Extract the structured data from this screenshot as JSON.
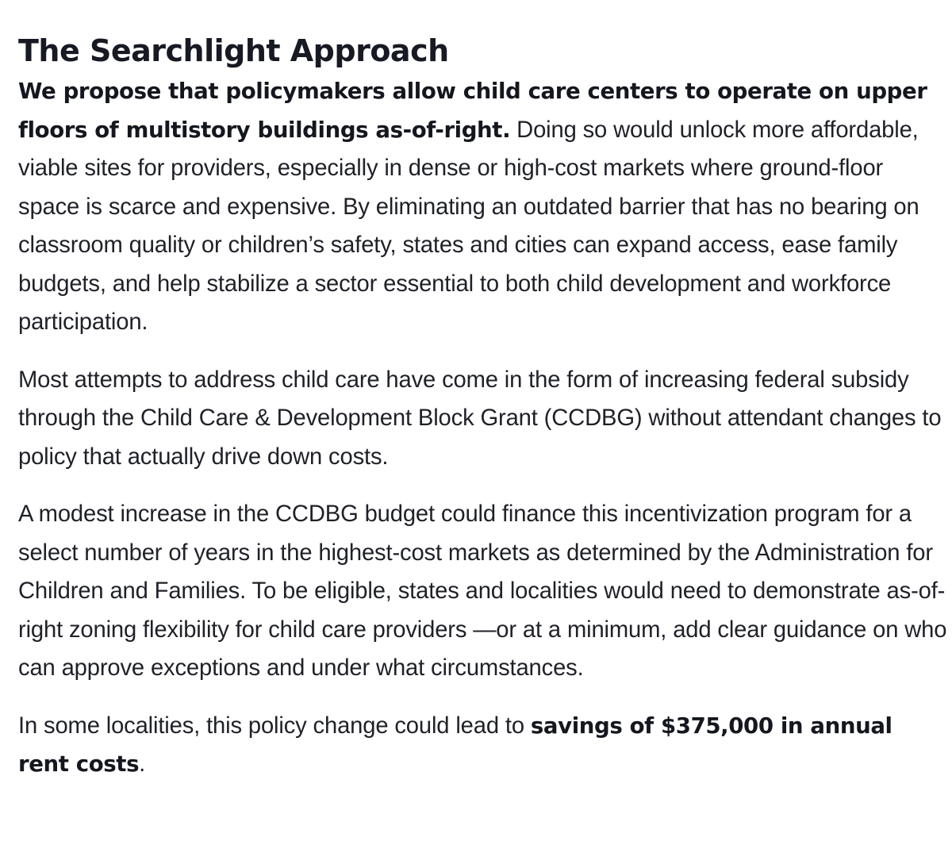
{
  "heading": "The Searchlight Approach",
  "paragraphs": [
    {
      "bold_lead": "We propose that policymakers allow child care centers to operate on upper floors of multistory buildings as-of-right.",
      "text": " Doing so would unlock more affordable, viable sites for providers, especially in dense or high-cost markets where ground-floor space is scarce and expensive. By eliminating an outdated barrier that has no bearing on classroom quality or children’s safety, states and cities can expand access, ease family budgets, and help stabilize a sector essential to both child development and workforce participation."
    },
    {
      "text": "Most attempts to address child care have come in the form of increasing federal subsidy through the Child Care & Development Block Grant (CCDBG) without attendant changes to policy that actually drive down costs."
    },
    {
      "text": "A modest increase in the CCDBG budget could finance this incentivization program for a select number of years in the highest-cost markets as determined by the Administration for Children and Families. To be eligible, states and localities would need to demonstrate as-of-right zoning flexibility for child care providers —or at a minimum, add clear guidance on who can approve exceptions and under what circumstances."
    },
    {
      "text": "In some localities, this policy change could lead to ",
      "bold_tail": "savings of $375,000 in annual rent costs",
      "end": "."
    }
  ]
}
